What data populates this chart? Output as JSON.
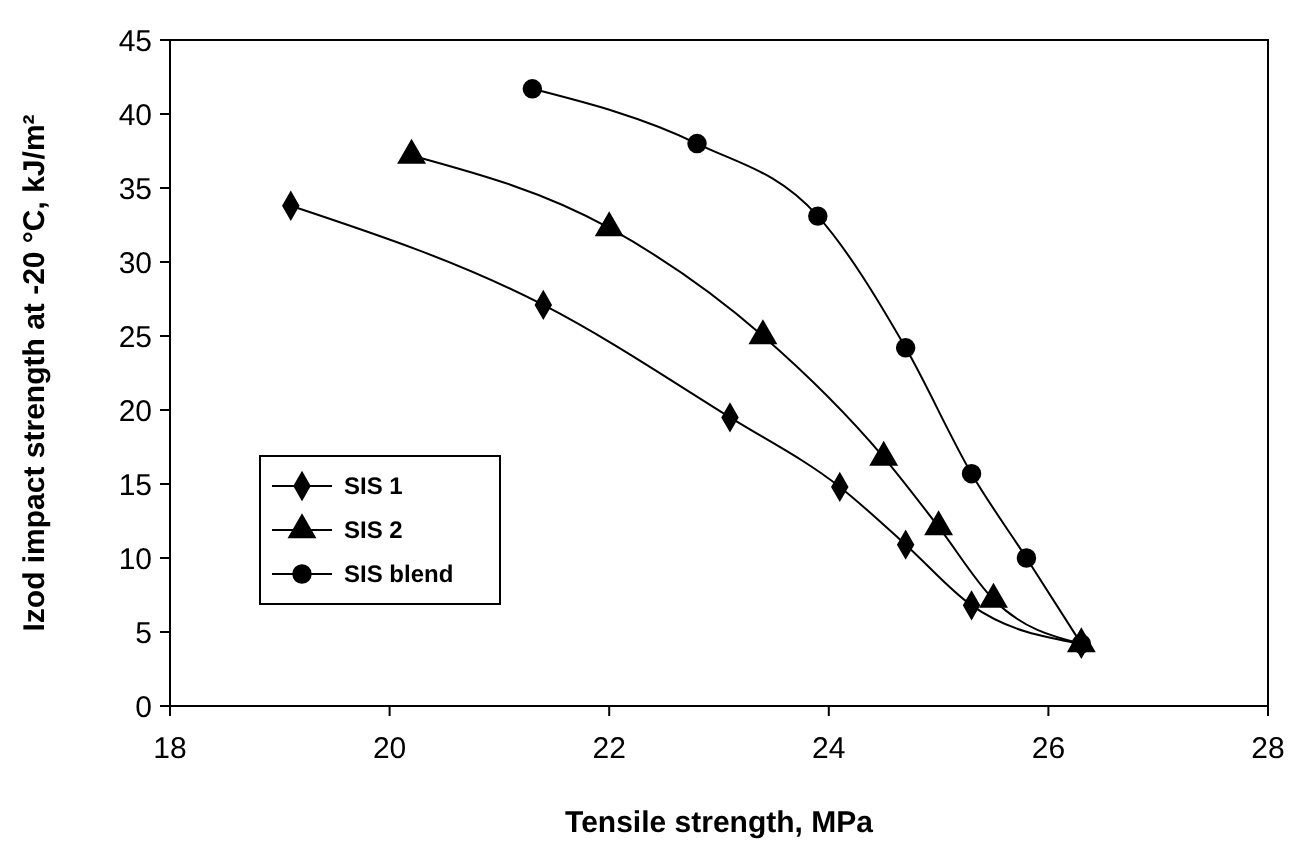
{
  "chart_data": {
    "type": "line",
    "xlabel": "Tensile strength, MPa",
    "ylabel": "Izod impact strength at -20 °C, kJ/m²",
    "xlim": [
      18,
      28
    ],
    "xticks": [
      18,
      20,
      22,
      24,
      26,
      28
    ],
    "ylim": [
      0,
      45
    ],
    "yticks": [
      0,
      5,
      10,
      15,
      20,
      25,
      30,
      35,
      40,
      45
    ],
    "legend": "left",
    "grid": false,
    "line_style": "solid",
    "series": [
      {
        "name": "SIS 1",
        "color": "#000000",
        "marker": "diamond",
        "x": [
          19.1,
          21.4,
          23.1,
          24.1,
          24.7,
          25.3,
          26.3
        ],
        "values": [
          33.8,
          27.1,
          19.5,
          14.8,
          10.9,
          6.8,
          4.2
        ]
      },
      {
        "name": "SIS 2",
        "color": "#000000",
        "marker": "triangle",
        "x": [
          20.2,
          22.0,
          23.4,
          24.5,
          25.0,
          25.5,
          26.3
        ],
        "values": [
          37.2,
          32.3,
          25.0,
          16.8,
          12.1,
          7.2,
          4.2
        ]
      },
      {
        "name": "SIS blend",
        "color": "#000000",
        "marker": "circle",
        "x": [
          21.3,
          22.8,
          23.9,
          24.7,
          25.3,
          25.8,
          26.3
        ],
        "values": [
          41.7,
          38.0,
          33.1,
          24.2,
          15.7,
          10.0,
          4.2
        ]
      }
    ]
  }
}
